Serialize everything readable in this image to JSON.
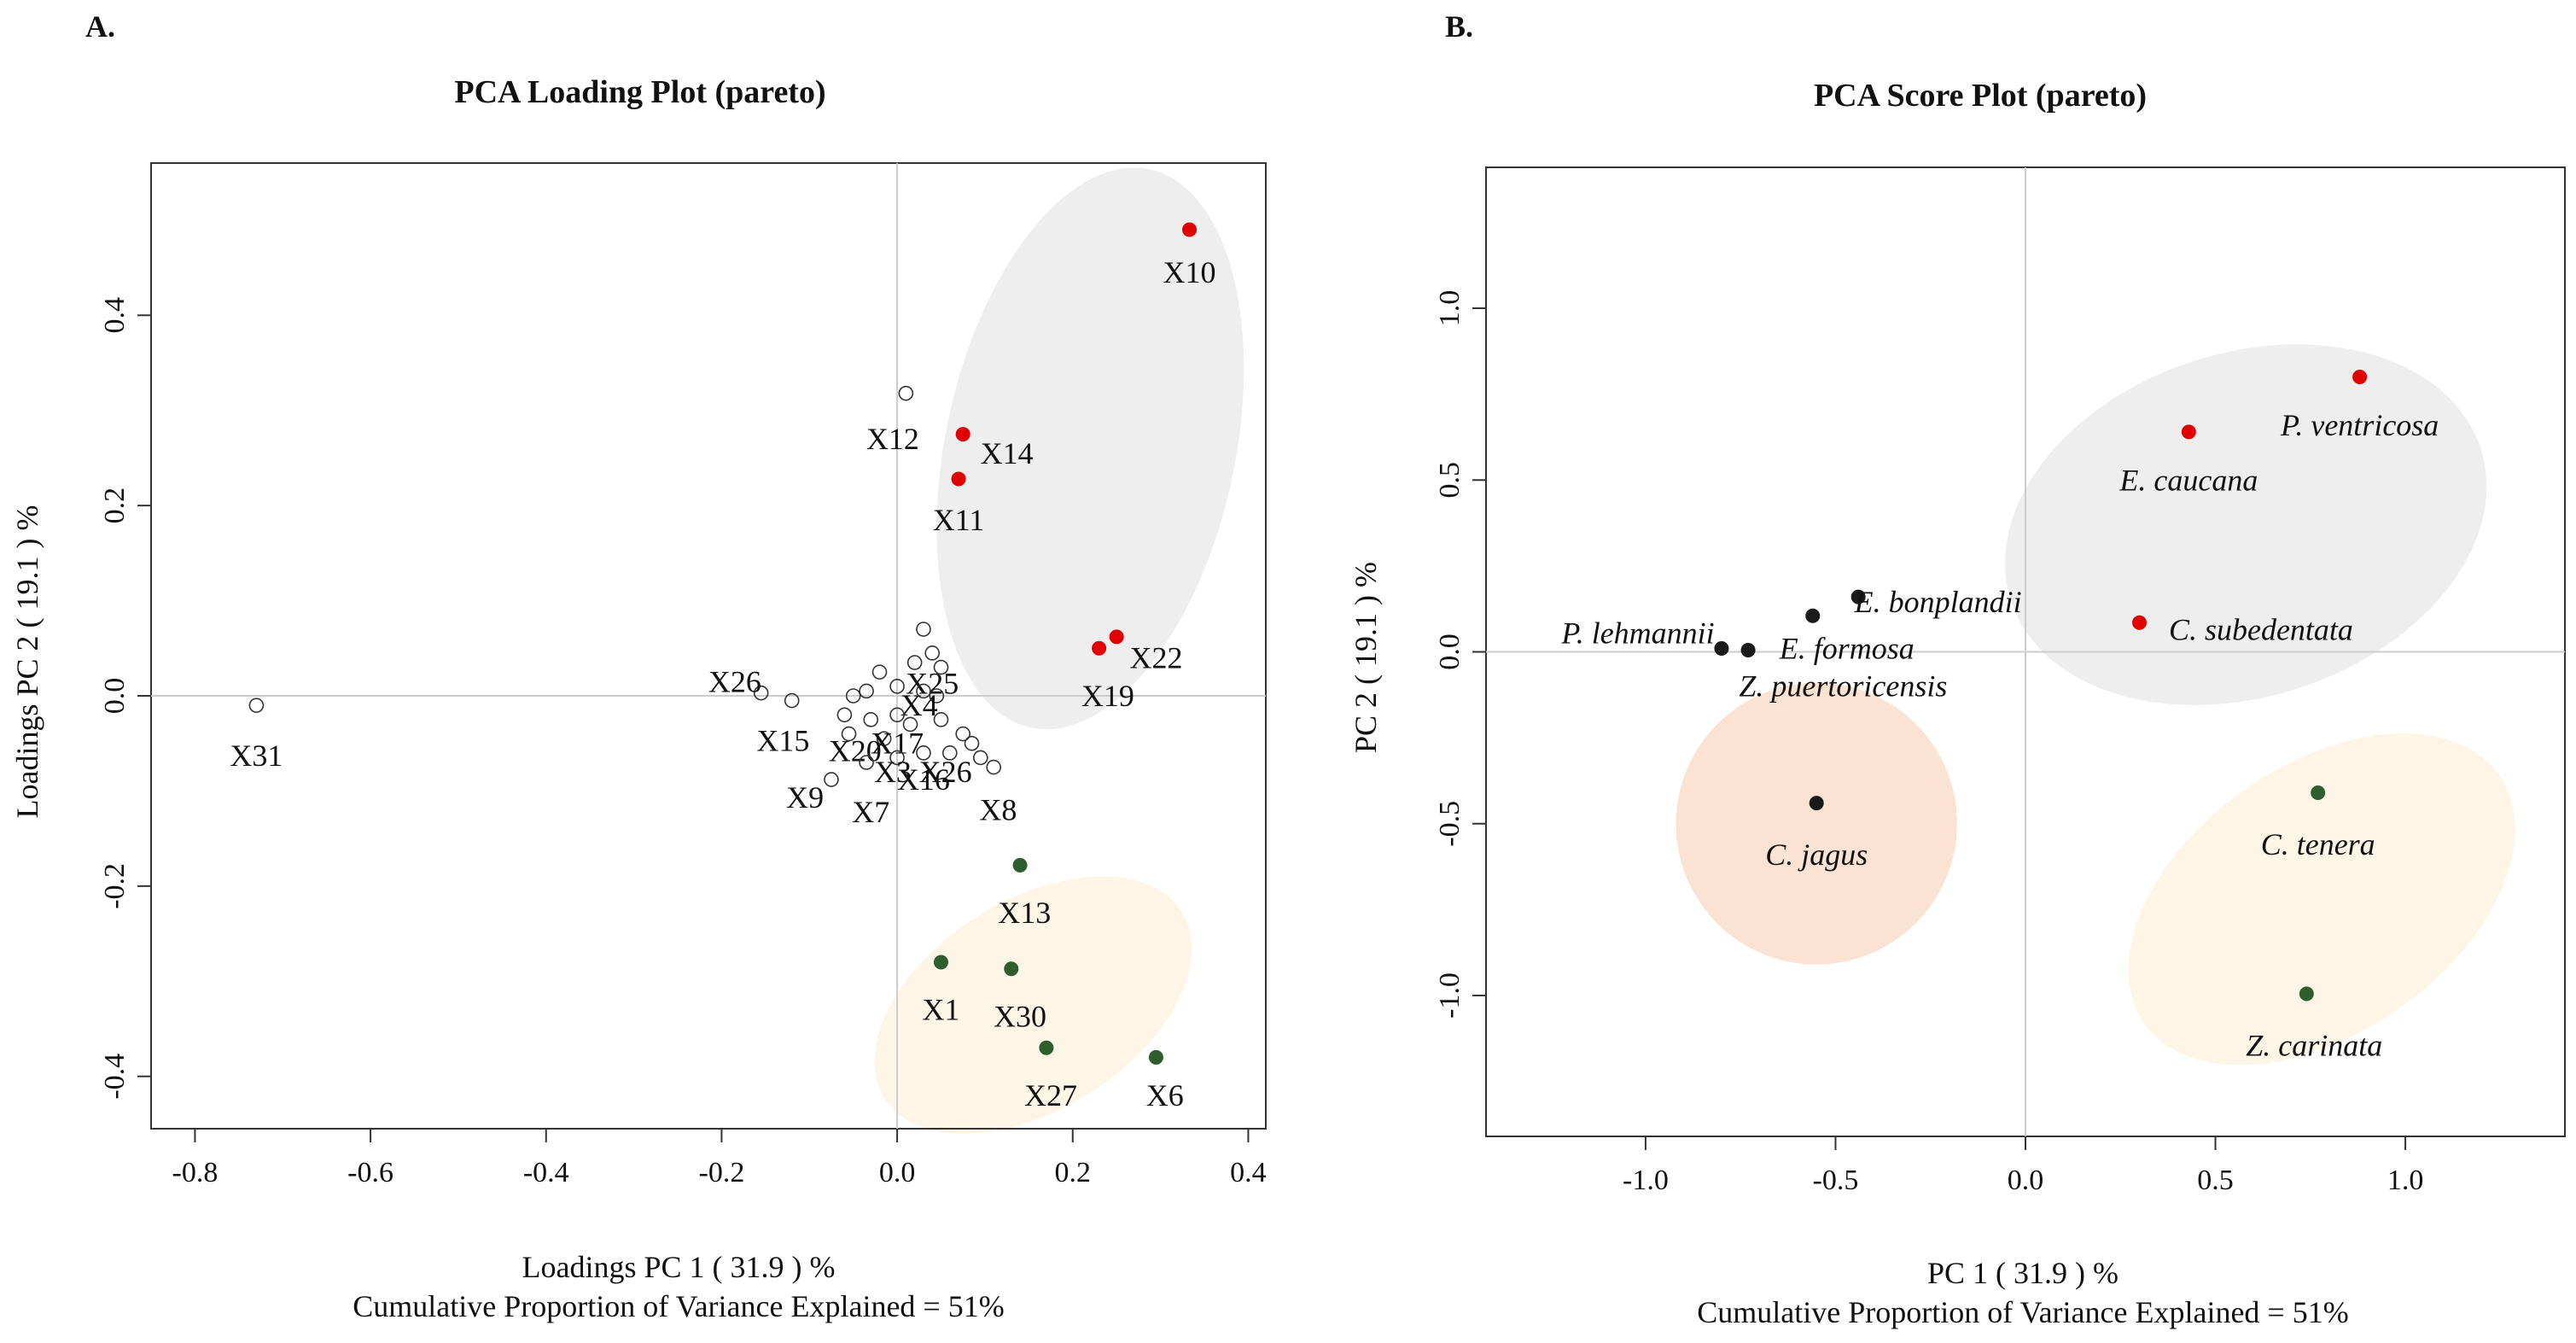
{
  "chart_data": [
    {
      "type": "scatter",
      "panel_label": "A.",
      "title": "PCA Loading Plot (pareto)",
      "xlabel": "Loadings PC 1  ( 31.9 ) %",
      "ylabel": "Loadings PC 2  ( 19.1 ) %",
      "caption": "Cumulative Proportion of Variance Explained = 51%",
      "xlim": [
        -0.85,
        0.42
      ],
      "ylim": [
        -0.455,
        0.56
      ],
      "xticks": [
        -0.8,
        -0.6,
        -0.4,
        -0.2,
        0.0,
        0.2,
        0.4
      ],
      "xtick_labels": [
        "-0.8",
        "-0.6",
        "-0.4",
        "-0.2",
        "0.0",
        "0.2",
        "0.4"
      ],
      "yticks": [
        -0.4,
        -0.2,
        0.0,
        0.2,
        0.4
      ],
      "ytick_labels": [
        "-0.4",
        "-0.2",
        "0.0",
        "0.2",
        "0.4"
      ],
      "reference_lines": {
        "x": 0,
        "y": 0
      },
      "ellipses": [
        {
          "name": "grey-group",
          "cx": 0.22,
          "cy": 0.26,
          "rx": 0.165,
          "ry": 0.3,
          "angle": 12,
          "color": "#eeeeee"
        },
        {
          "name": "yellow-group",
          "cx": 0.155,
          "cy": -0.325,
          "rx": 0.2,
          "ry": 0.11,
          "angle": -32,
          "color": "#fdf6e6"
        }
      ],
      "points": [
        {
          "label": "X10",
          "x": 0.333,
          "y": 0.49,
          "color": "#e00000",
          "filled": true,
          "lx": 0.333,
          "ly": 0.445
        },
        {
          "label": "X12",
          "x": 0.01,
          "y": 0.318,
          "color": "#333333",
          "filled": false,
          "lx": -0.005,
          "ly": 0.27
        },
        {
          "label": "X14",
          "x": 0.075,
          "y": 0.275,
          "color": "#e00000",
          "filled": true,
          "lx": 0.125,
          "ly": 0.255
        },
        {
          "label": "X11",
          "x": 0.07,
          "y": 0.228,
          "color": "#e00000",
          "filled": true,
          "lx": 0.07,
          "ly": 0.185
        },
        {
          "label": "X22",
          "x": 0.25,
          "y": 0.062,
          "color": "#e00000",
          "filled": true,
          "lx": 0.295,
          "ly": 0.04
        },
        {
          "label": "X19",
          "x": 0.23,
          "y": 0.05,
          "color": "#e00000",
          "filled": true,
          "lx": 0.24,
          "ly": 0.0
        },
        {
          "label": "X31",
          "x": -0.73,
          "y": -0.01,
          "color": "#333333",
          "filled": false,
          "lx": -0.73,
          "ly": -0.063
        },
        {
          "label": "X26",
          "x": -0.155,
          "y": 0.003,
          "color": "#333333",
          "filled": false,
          "lx": -0.185,
          "ly": 0.015
        },
        {
          "label": "X15",
          "x": -0.12,
          "y": -0.005,
          "color": "#333333",
          "filled": false,
          "lx": -0.13,
          "ly": -0.047
        },
        {
          "label": "X25",
          "x": 0.04,
          "y": 0.045,
          "color": "#333333",
          "filled": false,
          "lx": 0.04,
          "ly": 0.013
        },
        {
          "label": "X4",
          "x": 0.03,
          "y": 0.005,
          "color": "#333333",
          "filled": false,
          "lx": 0.025,
          "ly": -0.01
        },
        {
          "label": "X20",
          "x": -0.03,
          "y": -0.025,
          "color": "#333333",
          "filled": false,
          "lx": -0.048,
          "ly": -0.058
        },
        {
          "label": "X17",
          "x": 0.0,
          "y": -0.02,
          "color": "#333333",
          "filled": false,
          "lx": 0.0,
          "ly": -0.05
        },
        {
          "label": "X9",
          "x": -0.075,
          "y": -0.088,
          "color": "#333333",
          "filled": false,
          "lx": -0.105,
          "ly": -0.107
        },
        {
          "label": "X7",
          "x": -0.035,
          "y": -0.07,
          "color": "#333333",
          "filled": false,
          "lx": -0.03,
          "ly": -0.122
        },
        {
          "label": "X3",
          "x": 0.0,
          "y": -0.065,
          "color": "#333333",
          "filled": false,
          "lx": -0.005,
          "ly": -0.08
        },
        {
          "label": "X16",
          "x": 0.03,
          "y": -0.06,
          "color": "#333333",
          "filled": false,
          "lx": 0.03,
          "ly": -0.088
        },
        {
          "label": "X26",
          "x": 0.06,
          "y": -0.06,
          "color": "#333333",
          "filled": false,
          "lx": 0.055,
          "ly": -0.08
        },
        {
          "label": "X8",
          "x": 0.11,
          "y": -0.075,
          "color": "#333333",
          "filled": false,
          "lx": 0.115,
          "ly": -0.12
        },
        {
          "label": "X13",
          "x": 0.14,
          "y": -0.178,
          "color": "#2e5e2e",
          "filled": true,
          "lx": 0.145,
          "ly": -0.228
        },
        {
          "label": "X1",
          "x": 0.05,
          "y": -0.28,
          "color": "#2e5e2e",
          "filled": true,
          "lx": 0.05,
          "ly": -0.33
        },
        {
          "label": "X30",
          "x": 0.13,
          "y": -0.287,
          "color": "#2e5e2e",
          "filled": true,
          "lx": 0.14,
          "ly": -0.337
        },
        {
          "label": "X27",
          "x": 0.17,
          "y": -0.37,
          "color": "#2e5e2e",
          "filled": true,
          "lx": 0.175,
          "ly": -0.42
        },
        {
          "label": "X6",
          "x": 0.295,
          "y": -0.38,
          "color": "#2e5e2e",
          "filled": true,
          "lx": 0.305,
          "ly": -0.42
        }
      ],
      "extra_points": [
        {
          "x": -0.02,
          "y": 0.025,
          "color": "#333333",
          "filled": false
        },
        {
          "x": 0.03,
          "y": 0.07,
          "color": "#333333",
          "filled": false
        },
        {
          "x": 0.02,
          "y": 0.035,
          "color": "#333333",
          "filled": false
        },
        {
          "x": 0.05,
          "y": 0.03,
          "color": "#333333",
          "filled": false
        },
        {
          "x": 0.0,
          "y": 0.01,
          "color": "#333333",
          "filled": false
        },
        {
          "x": 0.045,
          "y": 0.0,
          "color": "#333333",
          "filled": false
        },
        {
          "x": -0.05,
          "y": 0.0,
          "color": "#333333",
          "filled": false
        },
        {
          "x": -0.035,
          "y": 0.005,
          "color": "#333333",
          "filled": false
        },
        {
          "x": -0.06,
          "y": -0.02,
          "color": "#333333",
          "filled": false
        },
        {
          "x": -0.055,
          "y": -0.04,
          "color": "#333333",
          "filled": false
        },
        {
          "x": 0.015,
          "y": -0.03,
          "color": "#333333",
          "filled": false
        },
        {
          "x": 0.05,
          "y": -0.025,
          "color": "#333333",
          "filled": false
        },
        {
          "x": 0.075,
          "y": -0.04,
          "color": "#333333",
          "filled": false
        },
        {
          "x": -0.015,
          "y": -0.045,
          "color": "#333333",
          "filled": false
        },
        {
          "x": 0.095,
          "y": -0.065,
          "color": "#333333",
          "filled": false
        },
        {
          "x": 0.085,
          "y": -0.05,
          "color": "#333333",
          "filled": false
        }
      ]
    },
    {
      "type": "scatter",
      "panel_label": "B.",
      "title": "PCA Score Plot (pareto)",
      "xlabel": "PC 1  ( 31.9 ) %",
      "ylabel": "PC 2  ( 19.1 ) %",
      "caption": "Cumulative Proportion of Variance Explained = 51%",
      "xlim": [
        -1.42,
        1.42
      ],
      "ylim": [
        -1.41,
        1.41
      ],
      "xticks": [
        -1.0,
        -0.5,
        0.0,
        0.5,
        1.0
      ],
      "xtick_labels": [
        "-1.0",
        "-0.5",
        "0.0",
        "0.5",
        "1.0"
      ],
      "yticks": [
        -1.0,
        -0.5,
        0.0,
        0.5,
        1.0
      ],
      "ytick_labels": [
        "-1.0",
        "-0.5",
        "0.0",
        "0.5",
        "1.0"
      ],
      "reference_lines": {
        "x": 0,
        "y": 0
      },
      "ellipses": [
        {
          "name": "grey-group",
          "cx": 0.58,
          "cy": 0.37,
          "rx": 0.65,
          "ry": 0.5,
          "angle": -18,
          "color": "#eeeeee"
        },
        {
          "name": "peach-group",
          "cx": -0.55,
          "cy": -0.5,
          "rx": 0.37,
          "ry": 0.41,
          "angle": 20,
          "color": "#fbe3d3"
        },
        {
          "name": "yellow-group",
          "cx": 0.78,
          "cy": -0.72,
          "rx": 0.57,
          "ry": 0.39,
          "angle": -35,
          "color": "#fdf6e6"
        }
      ],
      "points": [
        {
          "label": "P. ventricosa",
          "x": 0.88,
          "y": 0.8,
          "color": "#e00000",
          "lx": 0.88,
          "ly": 0.66
        },
        {
          "label": "E. caucana",
          "x": 0.43,
          "y": 0.64,
          "color": "#e00000",
          "lx": 0.43,
          "ly": 0.5
        },
        {
          "label": "C. subedentata",
          "x": 0.3,
          "y": 0.085,
          "color": "#e00000",
          "lx": 0.62,
          "ly": 0.065
        },
        {
          "label": "E. bonplandii",
          "x": -0.44,
          "y": 0.16,
          "color": "#1a1a1a",
          "lx": -0.23,
          "ly": 0.145
        },
        {
          "label": "E. formosa",
          "x": -0.56,
          "y": 0.105,
          "color": "#1a1a1a",
          "lx": -0.47,
          "ly": 0.01
        },
        {
          "label": "P. lehmannii",
          "x": -0.8,
          "y": 0.01,
          "color": "#1a1a1a",
          "lx": -1.02,
          "ly": 0.055
        },
        {
          "label": "Z. puertoricensis",
          "x": -0.73,
          "y": 0.005,
          "color": "#1a1a1a",
          "lx": -0.48,
          "ly": -0.1
        },
        {
          "label": "C. jagus",
          "x": -0.55,
          "y": -0.44,
          "color": "#1a1a1a",
          "lx": -0.55,
          "ly": -0.59
        },
        {
          "label": "C. tenera",
          "x": 0.77,
          "y": -0.41,
          "color": "#2e5e2e",
          "lx": 0.77,
          "ly": -0.56
        },
        {
          "label": "Z. carinata",
          "x": 0.74,
          "y": -0.995,
          "color": "#2e5e2e",
          "lx": 0.76,
          "ly": -1.145
        }
      ]
    }
  ]
}
